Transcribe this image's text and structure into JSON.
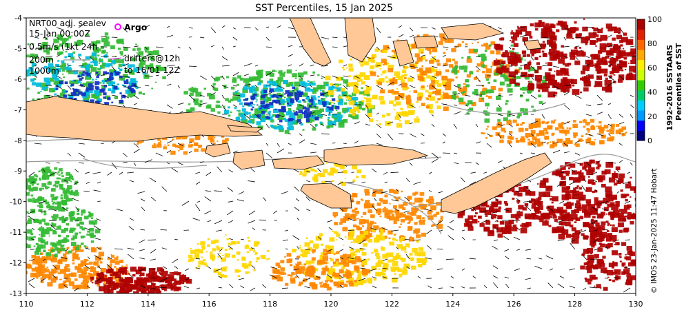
{
  "title": "SST Percentiles, 15 Jan 2025",
  "overlay": {
    "line1": "NRT00 adj. sealev",
    "line2": "15-Jan 00:00Z",
    "line3": "0.5m/s (1kt 24h",
    "line4": "200m",
    "line5": "1000m",
    "argo_label": "Argo",
    "drifters_line1": "drifters@12h",
    "drifters_line2": "to 16/01 12Z"
  },
  "axes": {
    "x_ticks": [
      "110",
      "112",
      "114",
      "116",
      "118",
      "120",
      "122",
      "124",
      "126",
      "128",
      "130"
    ],
    "y_ticks": [
      "-4",
      "-5",
      "-6",
      "-7",
      "-8",
      "-9",
      "-10",
      "-11",
      "-12",
      "-13"
    ]
  },
  "colorbar": {
    "ticks": [
      "100",
      "80",
      "60",
      "40",
      "20",
      "0"
    ],
    "title_line1": "1992-2016 SSTAARS",
    "title_line2": "Percentiles of SST",
    "colors": [
      "#000080",
      "#0000ff",
      "#0099ff",
      "#00ccff",
      "#00cc66",
      "#33cc00",
      "#ccff00",
      "#ffee00",
      "#ffaa00",
      "#ff6600",
      "#e02000",
      "#aa0000"
    ]
  },
  "credit": "© IMOS 23-Jan-2025 11:47 Hobart",
  "colors": {
    "land": "#ffc896",
    "warm": "#b00000",
    "orange": "#ff8800",
    "yellow": "#ffd700",
    "green": "#33bb33",
    "cyan": "#00bbdd",
    "blue": "#1030c0",
    "argo": "#ff00ff"
  }
}
